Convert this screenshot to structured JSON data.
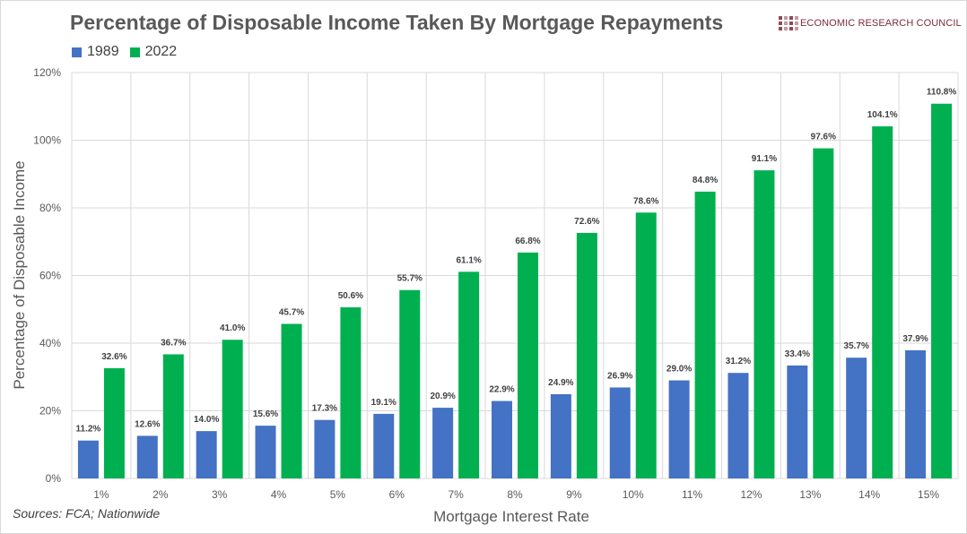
{
  "title": "Percentage of Disposable Income Taken By Mortgage Repayments",
  "logo": {
    "text": "ECONOMIC RESEARCH COUNCIL",
    "icon": "grid-logo-icon"
  },
  "source": "Sources: FCA; Nationwide",
  "colors": {
    "s1989": "#4472c4",
    "s2022": "#00b050",
    "grid": "#d9d9d9",
    "logo": "#8e4a5a"
  },
  "chart_data": {
    "type": "bar",
    "title": "Percentage of Disposable Income Taken By Mortgage Repayments",
    "xlabel": "Mortgage Interest Rate",
    "ylabel": "Percentage of Disposable Income",
    "categories": [
      "1%",
      "2%",
      "3%",
      "4%",
      "5%",
      "6%",
      "7%",
      "8%",
      "9%",
      "10%",
      "11%",
      "12%",
      "13%",
      "14%",
      "15%"
    ],
    "series": [
      {
        "name": "1989",
        "values": [
          11.2,
          12.6,
          14.0,
          15.6,
          17.3,
          19.1,
          20.9,
          22.9,
          24.9,
          26.9,
          29.0,
          31.2,
          33.4,
          35.7,
          37.9
        ]
      },
      {
        "name": "2022",
        "values": [
          32.6,
          36.7,
          41.0,
          45.7,
          50.6,
          55.7,
          61.1,
          66.8,
          72.6,
          78.6,
          84.8,
          91.1,
          97.6,
          104.1,
          110.8
        ]
      }
    ],
    "ylim": [
      0,
      120
    ],
    "yticks": [
      0,
      20,
      40,
      60,
      80,
      100,
      120
    ],
    "ytick_labels": [
      "0%",
      "20%",
      "40%",
      "60%",
      "80%",
      "100%",
      "120%"
    ],
    "grid": true,
    "legend_position": "top-left",
    "data_labels": true
  }
}
